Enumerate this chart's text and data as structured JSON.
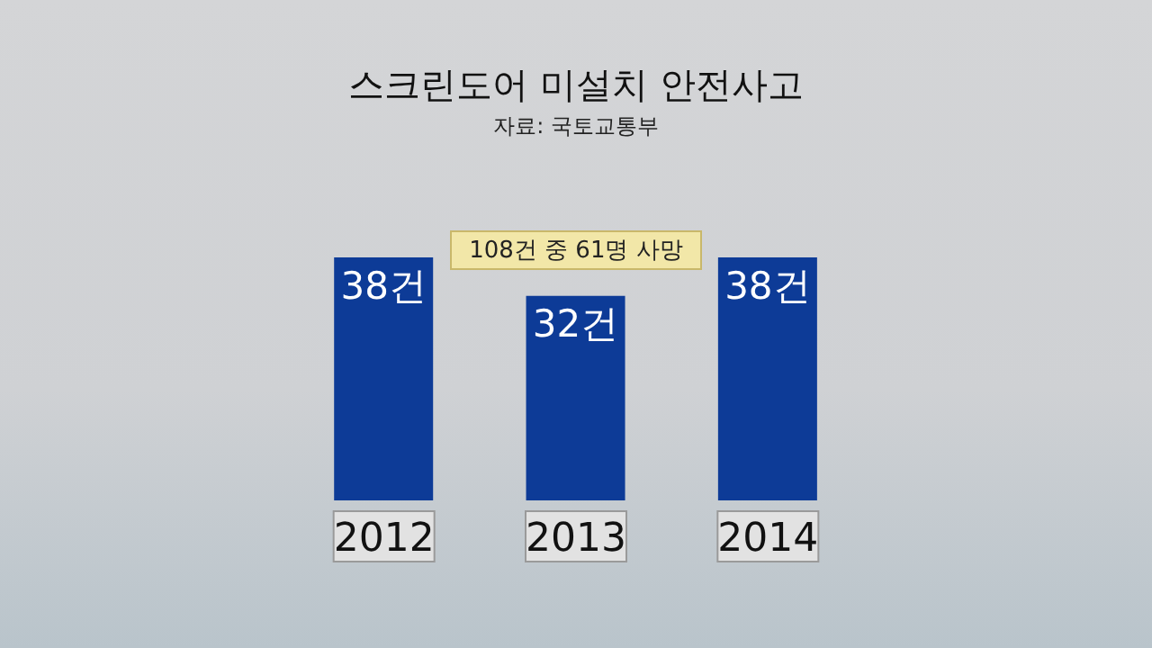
{
  "chart_data": {
    "type": "bar",
    "title": "스크린도어 미설치 안전사고",
    "subtitle": "자료: 국토교통부",
    "annotations": [
      "108건 중 61명 사망"
    ],
    "categories": [
      "2012",
      "2013",
      "2014"
    ],
    "values": [
      38,
      32,
      38
    ],
    "color": "#0d3b97",
    "value_labels": [
      "38건",
      "32건",
      "38건"
    ],
    "legend": false,
    "grid": false
  }
}
